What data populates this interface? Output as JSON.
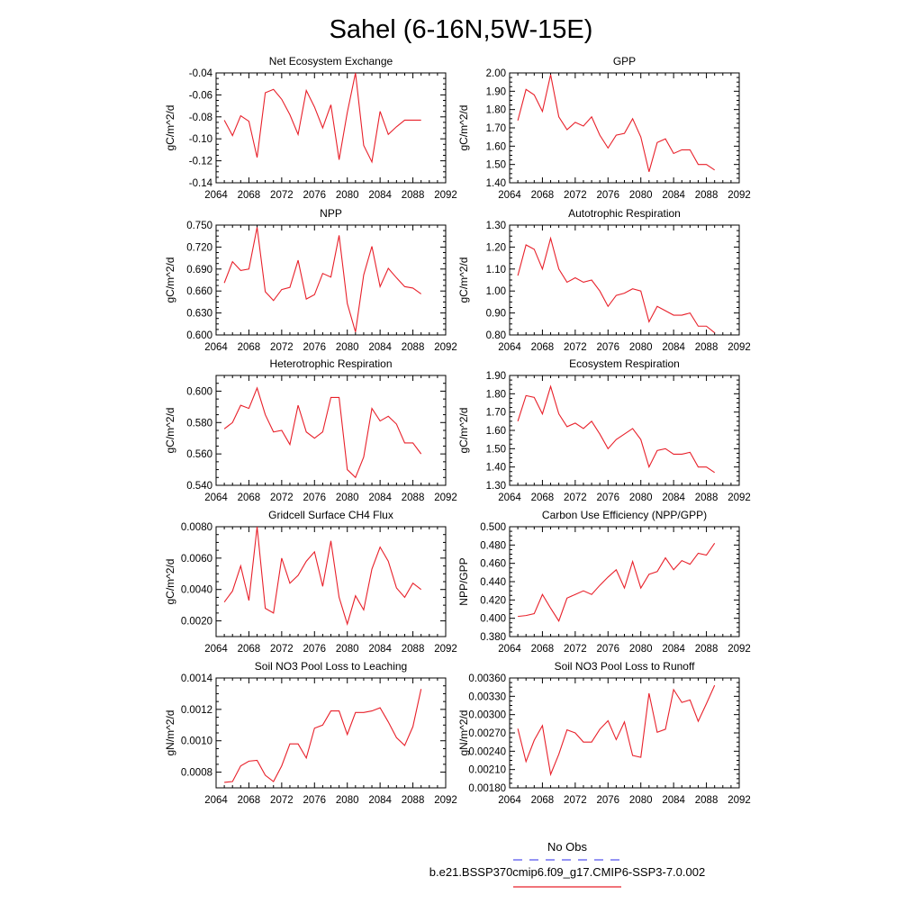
{
  "figure_title": "Sahel (6-16N,5W-15E)",
  "legend": {
    "obs_label": "No Obs",
    "obs_color": "#5555ee",
    "model_label": "b.e21.BSSP370cmip6.f09_g17.CMIP6-SSP3-7.0.002",
    "model_color": "#e8202a"
  },
  "chart_data": [
    {
      "type": "line",
      "title": "Net Ecosystem Exchange",
      "ylabel": "gC/m^2/d",
      "xlim": [
        2064,
        2092
      ],
      "xticks": [
        2064,
        2068,
        2072,
        2076,
        2080,
        2084,
        2088,
        2092
      ],
      "ylim": [
        -0.14,
        -0.04
      ],
      "yticks": [
        -0.14,
        -0.12,
        -0.1,
        -0.08,
        -0.06,
        -0.04
      ],
      "ytick_labels": [
        "-0.14",
        "-0.12",
        "-0.10",
        "-0.08",
        "-0.06",
        "-0.04"
      ],
      "x": [
        2065,
        2066,
        2067,
        2068,
        2069,
        2070,
        2071,
        2072,
        2073,
        2074,
        2075,
        2076,
        2077,
        2078,
        2079,
        2080,
        2081,
        2082,
        2083,
        2084,
        2085,
        2086,
        2087,
        2088,
        2089
      ],
      "series": [
        {
          "values": [
            -0.083,
            -0.097,
            -0.079,
            -0.084,
            -0.117,
            -0.058,
            -0.055,
            -0.064,
            -0.078,
            -0.096,
            -0.056,
            -0.071,
            -0.09,
            -0.069,
            -0.119,
            -0.076,
            -0.04,
            -0.106,
            -0.121,
            -0.075,
            -0.096,
            -0.089,
            -0.083,
            -0.083,
            -0.083
          ]
        }
      ]
    },
    {
      "type": "line",
      "title": "GPP",
      "ylabel": "gC/m^2/d",
      "xlim": [
        2064,
        2092
      ],
      "xticks": [
        2064,
        2068,
        2072,
        2076,
        2080,
        2084,
        2088,
        2092
      ],
      "ylim": [
        1.4,
        2.0
      ],
      "yticks": [
        1.4,
        1.5,
        1.6,
        1.7,
        1.8,
        1.9,
        2.0
      ],
      "ytick_labels": [
        "1.40",
        "1.50",
        "1.60",
        "1.70",
        "1.80",
        "1.90",
        "2.00"
      ],
      "x": [
        2065,
        2066,
        2067,
        2068,
        2069,
        2070,
        2071,
        2072,
        2073,
        2074,
        2075,
        2076,
        2077,
        2078,
        2079,
        2080,
        2081,
        2082,
        2083,
        2084,
        2085,
        2086,
        2087,
        2088,
        2089
      ],
      "series": [
        {
          "values": [
            1.74,
            1.91,
            1.88,
            1.79,
            1.99,
            1.76,
            1.69,
            1.73,
            1.71,
            1.76,
            1.66,
            1.59,
            1.66,
            1.67,
            1.75,
            1.65,
            1.46,
            1.62,
            1.64,
            1.56,
            1.58,
            1.58,
            1.5,
            1.5,
            1.47
          ]
        }
      ]
    },
    {
      "type": "line",
      "title": "NPP",
      "ylabel": "gC/m^2/d",
      "xlim": [
        2064,
        2092
      ],
      "xticks": [
        2064,
        2068,
        2072,
        2076,
        2080,
        2084,
        2088,
        2092
      ],
      "ylim": [
        0.6,
        0.75
      ],
      "yticks": [
        0.6,
        0.63,
        0.66,
        0.69,
        0.72,
        0.75
      ],
      "ytick_labels": [
        "0.600",
        "0.630",
        "0.660",
        "0.690",
        "0.720",
        "0.750"
      ],
      "x": [
        2065,
        2066,
        2067,
        2068,
        2069,
        2070,
        2071,
        2072,
        2073,
        2074,
        2075,
        2076,
        2077,
        2078,
        2079,
        2080,
        2081,
        2082,
        2083,
        2084,
        2085,
        2086,
        2087,
        2088,
        2089
      ],
      "series": [
        {
          "values": [
            0.671,
            0.7,
            0.688,
            0.69,
            0.747,
            0.659,
            0.647,
            0.662,
            0.665,
            0.702,
            0.649,
            0.655,
            0.684,
            0.679,
            0.736,
            0.643,
            0.604,
            0.682,
            0.721,
            0.666,
            0.691,
            0.678,
            0.666,
            0.664,
            0.656
          ]
        }
      ]
    },
    {
      "type": "line",
      "title": "Autotrophic Respiration",
      "ylabel": "gC/m^2/d",
      "xlim": [
        2064,
        2092
      ],
      "xticks": [
        2064,
        2068,
        2072,
        2076,
        2080,
        2084,
        2088,
        2092
      ],
      "ylim": [
        0.8,
        1.3
      ],
      "yticks": [
        0.8,
        0.9,
        1.0,
        1.1,
        1.2,
        1.3
      ],
      "ytick_labels": [
        "0.80",
        "0.90",
        "1.00",
        "1.10",
        "1.20",
        "1.30"
      ],
      "x": [
        2065,
        2066,
        2067,
        2068,
        2069,
        2070,
        2071,
        2072,
        2073,
        2074,
        2075,
        2076,
        2077,
        2078,
        2079,
        2080,
        2081,
        2082,
        2083,
        2084,
        2085,
        2086,
        2087,
        2088,
        2089
      ],
      "series": [
        {
          "values": [
            1.07,
            1.21,
            1.19,
            1.1,
            1.24,
            1.1,
            1.04,
            1.06,
            1.04,
            1.05,
            1.0,
            0.93,
            0.98,
            0.99,
            1.01,
            1.0,
            0.86,
            0.93,
            0.91,
            0.89,
            0.89,
            0.9,
            0.84,
            0.84,
            0.81
          ]
        }
      ]
    },
    {
      "type": "line",
      "title": "Heterotrophic Respiration",
      "ylabel": "gC/m^2/d",
      "xlim": [
        2064,
        2092
      ],
      "xticks": [
        2064,
        2068,
        2072,
        2076,
        2080,
        2084,
        2088,
        2092
      ],
      "ylim": [
        0.54,
        0.61
      ],
      "yticks": [
        0.54,
        0.56,
        0.58,
        0.6
      ],
      "ytick_labels": [
        "0.540",
        "0.560",
        "0.580",
        "0.600"
      ],
      "x": [
        2065,
        2066,
        2067,
        2068,
        2069,
        2070,
        2071,
        2072,
        2073,
        2074,
        2075,
        2076,
        2077,
        2078,
        2079,
        2080,
        2081,
        2082,
        2083,
        2084,
        2085,
        2086,
        2087,
        2088,
        2089
      ],
      "series": [
        {
          "values": [
            0.576,
            0.58,
            0.591,
            0.589,
            0.602,
            0.585,
            0.574,
            0.575,
            0.566,
            0.591,
            0.574,
            0.57,
            0.574,
            0.596,
            0.596,
            0.55,
            0.545,
            0.558,
            0.589,
            0.581,
            0.584,
            0.579,
            0.567,
            0.567,
            0.56
          ]
        }
      ]
    },
    {
      "type": "line",
      "title": "Ecosystem Respiration",
      "ylabel": "gC/m^2/d",
      "xlim": [
        2064,
        2092
      ],
      "xticks": [
        2064,
        2068,
        2072,
        2076,
        2080,
        2084,
        2088,
        2092
      ],
      "ylim": [
        1.3,
        1.9
      ],
      "yticks": [
        1.3,
        1.4,
        1.5,
        1.6,
        1.7,
        1.8,
        1.9
      ],
      "ytick_labels": [
        "1.30",
        "1.40",
        "1.50",
        "1.60",
        "1.70",
        "1.80",
        "1.90"
      ],
      "x": [
        2065,
        2066,
        2067,
        2068,
        2069,
        2070,
        2071,
        2072,
        2073,
        2074,
        2075,
        2076,
        2077,
        2078,
        2079,
        2080,
        2081,
        2082,
        2083,
        2084,
        2085,
        2086,
        2087,
        2088,
        2089
      ],
      "series": [
        {
          "values": [
            1.65,
            1.79,
            1.78,
            1.69,
            1.84,
            1.69,
            1.62,
            1.64,
            1.61,
            1.65,
            1.58,
            1.5,
            1.55,
            1.58,
            1.61,
            1.55,
            1.4,
            1.49,
            1.5,
            1.47,
            1.47,
            1.48,
            1.4,
            1.4,
            1.37
          ]
        }
      ]
    },
    {
      "type": "line",
      "title": "Gridcell Surface CH4 Flux",
      "ylabel": "gC/m^2/d",
      "xlim": [
        2064,
        2092
      ],
      "xticks": [
        2064,
        2068,
        2072,
        2076,
        2080,
        2084,
        2088,
        2092
      ],
      "ylim": [
        0.001,
        0.008
      ],
      "yticks": [
        0.002,
        0.004,
        0.006,
        0.008
      ],
      "ytick_labels": [
        "0.0020",
        "0.0040",
        "0.0060",
        "0.0080"
      ],
      "x": [
        2065,
        2066,
        2067,
        2068,
        2069,
        2070,
        2071,
        2072,
        2073,
        2074,
        2075,
        2076,
        2077,
        2078,
        2079,
        2080,
        2081,
        2082,
        2083,
        2084,
        2085,
        2086,
        2087,
        2088,
        2089
      ],
      "series": [
        {
          "values": [
            0.0032,
            0.0039,
            0.0055,
            0.0033,
            0.008,
            0.0028,
            0.0025,
            0.006,
            0.0044,
            0.0049,
            0.0058,
            0.0064,
            0.0042,
            0.0071,
            0.0035,
            0.0018,
            0.0036,
            0.0027,
            0.0053,
            0.0067,
            0.0058,
            0.0041,
            0.0035,
            0.0044,
            0.004
          ]
        }
      ]
    },
    {
      "type": "line",
      "title": "Carbon Use Efficiency (NPP/GPP)",
      "ylabel": "NPP/GPP",
      "xlim": [
        2064,
        2092
      ],
      "xticks": [
        2064,
        2068,
        2072,
        2076,
        2080,
        2084,
        2088,
        2092
      ],
      "ylim": [
        0.38,
        0.5
      ],
      "yticks": [
        0.38,
        0.4,
        0.42,
        0.44,
        0.46,
        0.48,
        0.5
      ],
      "ytick_labels": [
        "0.380",
        "0.400",
        "0.420",
        "0.440",
        "0.460",
        "0.480",
        "0.500"
      ],
      "x": [
        2065,
        2066,
        2067,
        2068,
        2069,
        2070,
        2071,
        2072,
        2073,
        2074,
        2075,
        2076,
        2077,
        2078,
        2079,
        2080,
        2081,
        2082,
        2083,
        2084,
        2085,
        2086,
        2087,
        2088,
        2089
      ],
      "series": [
        {
          "values": [
            0.402,
            0.403,
            0.405,
            0.426,
            0.411,
            0.397,
            0.422,
            0.426,
            0.43,
            0.426,
            0.436,
            0.445,
            0.453,
            0.433,
            0.462,
            0.433,
            0.448,
            0.451,
            0.466,
            0.453,
            0.463,
            0.459,
            0.471,
            0.469,
            0.482
          ]
        }
      ]
    },
    {
      "type": "line",
      "title": "Soil NO3 Pool Loss to Leaching",
      "ylabel": "gN/m^2/d",
      "xlim": [
        2064,
        2092
      ],
      "xticks": [
        2064,
        2068,
        2072,
        2076,
        2080,
        2084,
        2088,
        2092
      ],
      "ylim": [
        0.0007,
        0.0014
      ],
      "yticks": [
        0.0008,
        0.001,
        0.0012,
        0.0014
      ],
      "ytick_labels": [
        "0.0008",
        "0.0010",
        "0.0012",
        "0.0014"
      ],
      "x": [
        2065,
        2066,
        2067,
        2068,
        2069,
        2070,
        2071,
        2072,
        2073,
        2074,
        2075,
        2076,
        2077,
        2078,
        2079,
        2080,
        2081,
        2082,
        2083,
        2084,
        2085,
        2086,
        2087,
        2088,
        2089
      ],
      "series": [
        {
          "values": [
            0.000735,
            0.00074,
            0.00084,
            0.00087,
            0.000875,
            0.00078,
            0.00074,
            0.00084,
            0.00098,
            0.00098,
            0.00089,
            0.00108,
            0.0011,
            0.00119,
            0.00119,
            0.00104,
            0.00118,
            0.00118,
            0.00119,
            0.00121,
            0.00112,
            0.00102,
            0.00097,
            0.00109,
            0.00133
          ]
        }
      ]
    },
    {
      "type": "line",
      "title": "Soil NO3 Pool Loss to Runoff",
      "ylabel": "gN/m^2/d",
      "xlim": [
        2064,
        2092
      ],
      "xticks": [
        2064,
        2068,
        2072,
        2076,
        2080,
        2084,
        2088,
        2092
      ],
      "ylim": [
        0.0018,
        0.0036
      ],
      "yticks": [
        0.0018,
        0.0021,
        0.0024,
        0.0027,
        0.003,
        0.0033,
        0.0036
      ],
      "ytick_labels": [
        "0.00180",
        "0.00210",
        "0.00240",
        "0.00270",
        "0.00300",
        "0.00330",
        "0.00360"
      ],
      "x": [
        2065,
        2066,
        2067,
        2068,
        2069,
        2070,
        2071,
        2072,
        2073,
        2074,
        2075,
        2076,
        2077,
        2078,
        2079,
        2080,
        2081,
        2082,
        2083,
        2084,
        2085,
        2086,
        2087,
        2088,
        2089
      ],
      "series": [
        {
          "values": [
            0.00277,
            0.00223,
            0.00258,
            0.00282,
            0.00202,
            0.00235,
            0.00275,
            0.0027,
            0.00255,
            0.00255,
            0.00276,
            0.0029,
            0.00259,
            0.00288,
            0.00233,
            0.0023,
            0.00335,
            0.00271,
            0.00276,
            0.00341,
            0.0032,
            0.00324,
            0.00289,
            0.00318,
            0.00348
          ]
        }
      ]
    }
  ]
}
